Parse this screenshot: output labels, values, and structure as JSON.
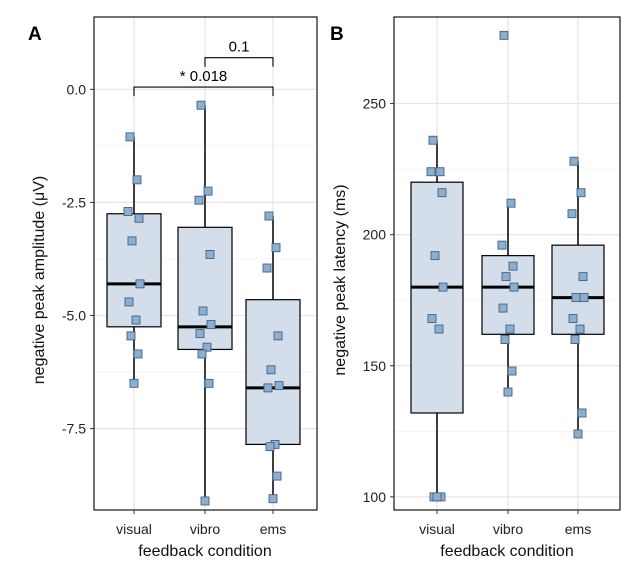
{
  "chart_data": [
    {
      "panel": "A",
      "type": "box",
      "xlabel": "feedback condition",
      "ylabel": "negative peak amplitude (μV)",
      "ylim": [
        -9.3,
        1.6
      ],
      "yticks": [
        0.0,
        -2.5,
        -5.0,
        -7.5
      ],
      "ytick_labels": [
        "0.0",
        "-2.5",
        "-5.0",
        "-7.5"
      ],
      "categories": [
        "visual",
        "vibro",
        "ems"
      ],
      "grid": true,
      "colors": {
        "box_fill": "#d3deea",
        "point": "#8eaecf",
        "point_edge": "#3f6386",
        "line": "#000000",
        "grid": "#e6e6e6"
      },
      "boxes": [
        {
          "category": "visual",
          "whisker_low": -6.5,
          "q1": -5.25,
          "median": -4.3,
          "q3": -2.75,
          "whisker_high": -1.05
        },
        {
          "category": "vibro",
          "whisker_low": -9.1,
          "q1": -5.75,
          "median": -5.25,
          "q3": -3.05,
          "whisker_high": -0.35
        },
        {
          "category": "ems",
          "whisker_low": -9.05,
          "q1": -7.85,
          "median": -6.6,
          "q3": -4.65,
          "whisker_high": -2.8
        }
      ],
      "points": [
        {
          "category": "visual",
          "values": [
            -1.05,
            -2.0,
            -2.7,
            -2.85,
            -3.35,
            -4.3,
            -4.7,
            -5.1,
            -5.45,
            -5.85,
            -6.5
          ]
        },
        {
          "category": "vibro",
          "values": [
            -0.35,
            -2.25,
            -2.45,
            -3.65,
            -4.9,
            -5.2,
            -5.4,
            -5.7,
            -5.85,
            -6.5,
            -9.1
          ]
        },
        {
          "category": "ems",
          "values": [
            -2.8,
            -3.5,
            -3.95,
            -5.45,
            -6.2,
            -6.55,
            -6.6,
            -7.85,
            -7.9,
            -8.55,
            -9.05
          ]
        }
      ],
      "annotations": [
        {
          "from": "vibro",
          "to": "ems",
          "label": "0.1",
          "y": 0.7
        },
        {
          "from": "visual",
          "to": "ems",
          "label": "* 0.018",
          "y": 0.05
        }
      ]
    },
    {
      "panel": "B",
      "type": "box",
      "xlabel": "feedback condition",
      "ylabel": "negative peak latency (ms)",
      "ylim": [
        95,
        283
      ],
      "yticks": [
        100,
        150,
        200,
        250
      ],
      "ytick_labels": [
        "100",
        "150",
        "200",
        "250"
      ],
      "categories": [
        "visual",
        "vibro",
        "ems"
      ],
      "grid": true,
      "colors": {
        "box_fill": "#d3deea",
        "point": "#8eaecf",
        "point_edge": "#3f6386",
        "line": "#000000",
        "grid": "#e6e6e6"
      },
      "boxes": [
        {
          "category": "visual",
          "whisker_low": 100,
          "q1": 132,
          "median": 180,
          "q3": 220,
          "whisker_high": 236
        },
        {
          "category": "vibro",
          "whisker_low": 140,
          "q1": 162,
          "median": 180,
          "q3": 192,
          "whisker_high": 212
        },
        {
          "category": "ems",
          "whisker_low": 124,
          "q1": 162,
          "median": 176,
          "q3": 196,
          "whisker_high": 228
        }
      ],
      "points": [
        {
          "category": "visual",
          "values": [
            236,
            224,
            224,
            216,
            192,
            180,
            168,
            164,
            100,
            100,
            100
          ]
        },
        {
          "category": "vibro",
          "values": [
            276,
            212,
            196,
            188,
            184,
            180,
            172,
            164,
            160,
            148,
            140
          ]
        },
        {
          "category": "ems",
          "values": [
            228,
            216,
            208,
            184,
            176,
            176,
            168,
            164,
            160,
            132,
            124
          ]
        }
      ],
      "annotations": []
    }
  ]
}
